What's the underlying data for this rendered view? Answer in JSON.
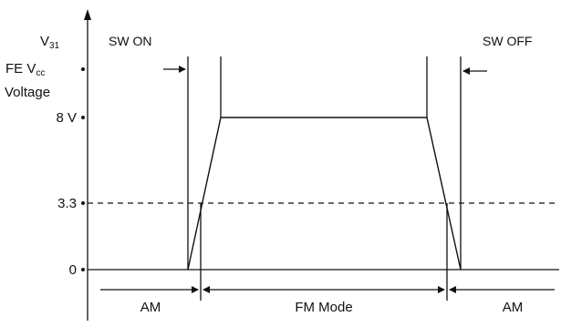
{
  "y_axis": {
    "line1_main": "V",
    "line1_sub": "31",
    "line2_main": "FE V",
    "line2_sub": "cc",
    "line3": "Voltage",
    "tick_8v": "8 V",
    "tick_3v3": "3.3",
    "tick_0": "0"
  },
  "annotations": {
    "sw_on": "SW ON",
    "sw_off": "SW OFF"
  },
  "bottom_labels": {
    "am_left": "AM",
    "fm_mode": "FM Mode",
    "am_right": "AM"
  },
  "levels": {
    "high_v": 8,
    "threshold_v": 3.3,
    "low_v": 0
  }
}
